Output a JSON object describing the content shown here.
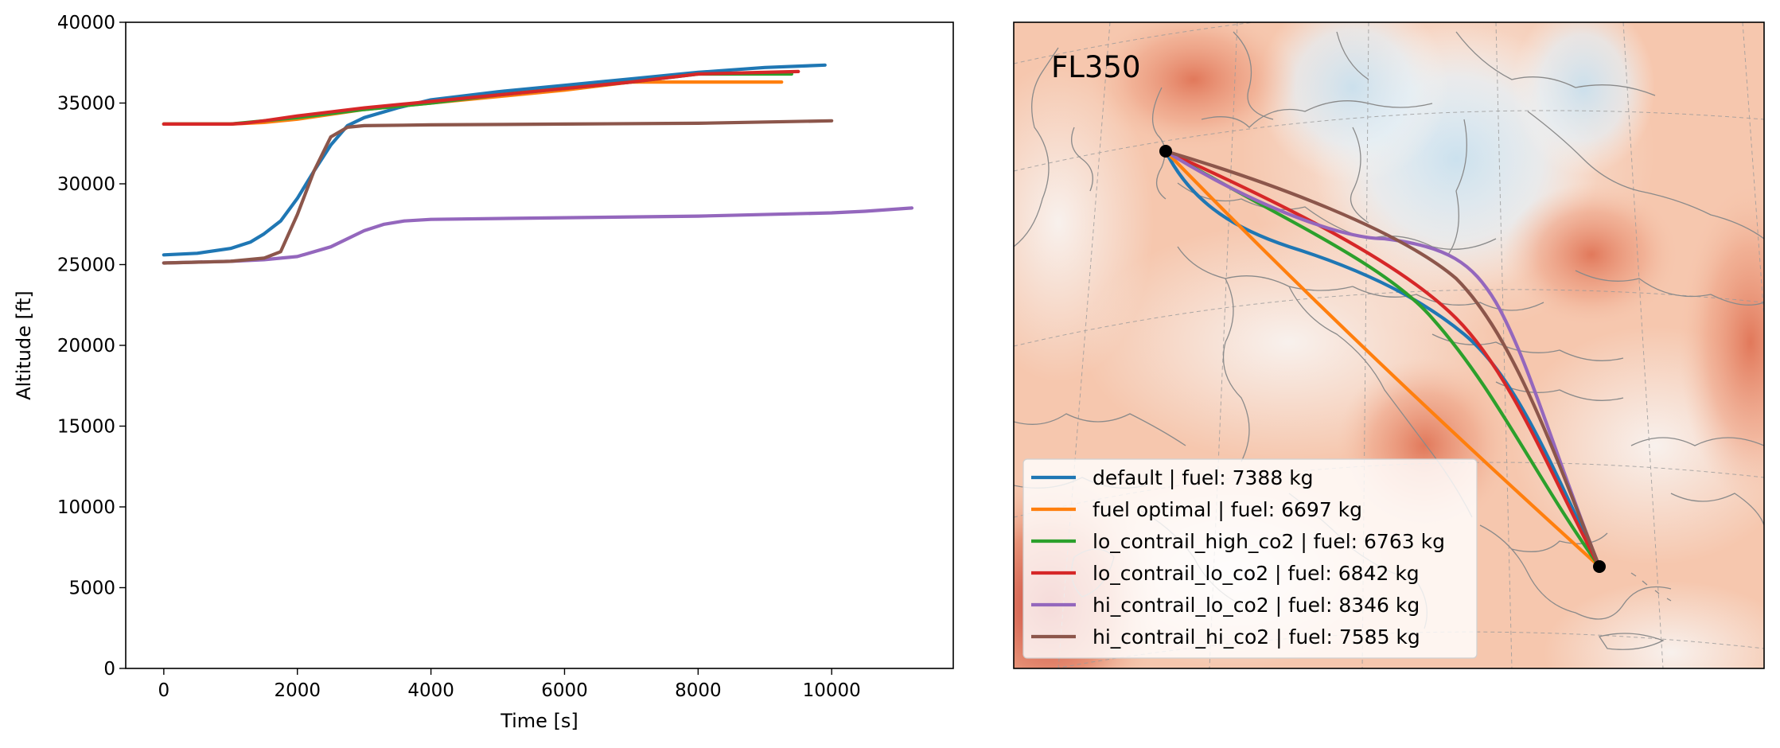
{
  "chart_data": [
    {
      "type": "line",
      "xlabel": "Time [s]",
      "ylabel": "Altitude [ft]",
      "xlim": [
        -570,
        11820
      ],
      "ylim": [
        0,
        40000
      ],
      "xticks": [
        0,
        2000,
        4000,
        6000,
        8000,
        10000
      ],
      "yticks": [
        0,
        5000,
        10000,
        15000,
        20000,
        25000,
        30000,
        35000,
        40000
      ],
      "grid": false,
      "series": [
        {
          "key": "default",
          "color": "#1f77b4",
          "x": [
            0,
            500,
            1000,
            1300,
            1500,
            1750,
            2000,
            2250,
            2500,
            2750,
            3000,
            3500,
            4000,
            5000,
            6000,
            7000,
            8000,
            9000,
            9900
          ],
          "y": [
            25600,
            25700,
            26000,
            26400,
            26900,
            27700,
            29100,
            30800,
            32400,
            33600,
            34100,
            34700,
            35200,
            35700,
            36100,
            36500,
            36900,
            37200,
            37350
          ]
        },
        {
          "key": "fuel_optimal",
          "color": "#ff7f0e",
          "x": [
            0,
            1000,
            1500,
            2000,
            3000,
            4000,
            5000,
            6000,
            7000,
            8000,
            9250
          ],
          "y": [
            33700,
            33700,
            33800,
            34000,
            34600,
            35000,
            35400,
            35800,
            36300,
            36300,
            36300
          ]
        },
        {
          "key": "lo_contrail_high_co2",
          "color": "#2ca02c",
          "x": [
            0,
            1000,
            1500,
            2000,
            3000,
            4000,
            5000,
            6000,
            7000,
            8000,
            9400
          ],
          "y": [
            33700,
            33700,
            33900,
            34100,
            34600,
            35000,
            35500,
            35900,
            36300,
            36800,
            36800
          ]
        },
        {
          "key": "lo_contrail_lo_co2",
          "color": "#d62728",
          "x": [
            0,
            1000,
            1200,
            1500,
            2000,
            3000,
            4000,
            5000,
            6000,
            7000,
            8000,
            9000,
            9500
          ],
          "y": [
            33700,
            33700,
            33750,
            33900,
            34200,
            34700,
            35100,
            35500,
            35900,
            36300,
            36800,
            36900,
            36950
          ]
        },
        {
          "key": "hi_contrail_lo_co2",
          "color": "#9467bd",
          "x": [
            0,
            1000,
            1500,
            2000,
            2500,
            3000,
            3300,
            3600,
            4000,
            6000,
            8000,
            10000,
            10500,
            11200
          ],
          "y": [
            25100,
            25200,
            25300,
            25500,
            26100,
            27100,
            27500,
            27700,
            27800,
            27900,
            28000,
            28200,
            28300,
            28500
          ]
        },
        {
          "key": "hi_contrail_hi_co2",
          "color": "#8c564b",
          "x": [
            0,
            1000,
            1500,
            1750,
            2000,
            2250,
            2500,
            2750,
            3000,
            4000,
            6000,
            8000,
            10000
          ],
          "y": [
            25100,
            25200,
            25400,
            25800,
            28100,
            30800,
            32900,
            33500,
            33600,
            33650,
            33700,
            33750,
            33900
          ]
        }
      ]
    },
    {
      "type": "map",
      "title": "FL350",
      "origin_marker": "black-dot",
      "destination_marker": "black-dot",
      "legend_position": "lower-left",
      "series": [
        {
          "key": "default",
          "color": "#1f77b4",
          "label": "default | fuel: 7388 kg"
        },
        {
          "key": "fuel_optimal",
          "color": "#ff7f0e",
          "label": "fuel optimal | fuel: 6697 kg"
        },
        {
          "key": "lo_contrail_high_co2",
          "color": "#2ca02c",
          "label": "lo_contrail_high_co2 | fuel: 6763 kg"
        },
        {
          "key": "lo_contrail_lo_co2",
          "color": "#d62728",
          "label": "lo_contrail_lo_co2 | fuel: 6842 kg"
        },
        {
          "key": "hi_contrail_lo_co2",
          "color": "#9467bd",
          "label": "hi_contrail_lo_co2 | fuel: 8346 kg"
        },
        {
          "key": "hi_contrail_hi_co2",
          "color": "#8c564b",
          "label": "hi_contrail_hi_co2 | fuel: 7585 kg"
        }
      ]
    }
  ]
}
